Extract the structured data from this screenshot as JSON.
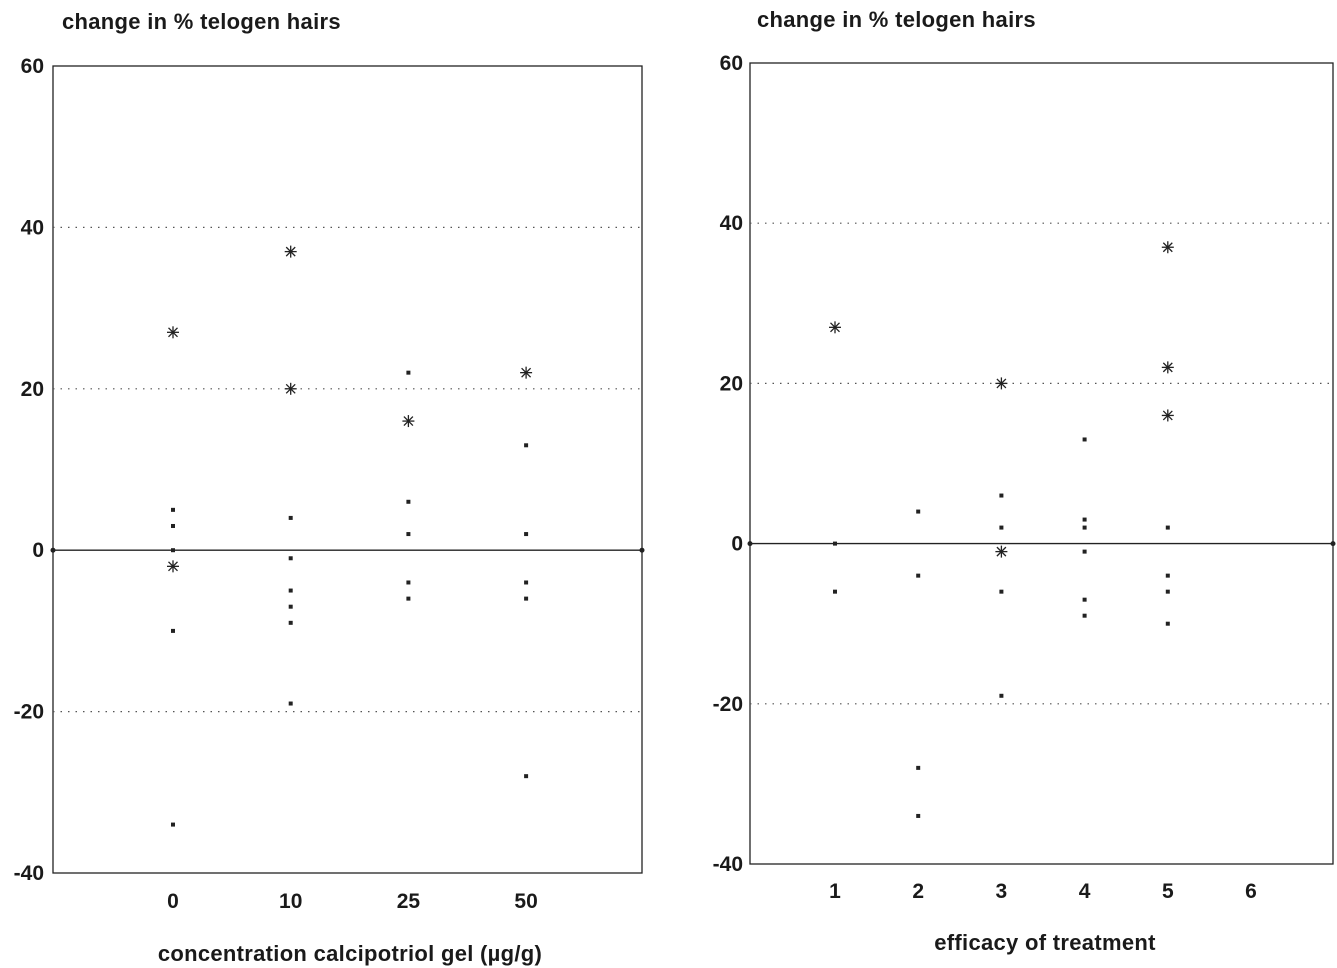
{
  "chart_data": [
    {
      "type": "scatter",
      "ylabel": "change in % telogen hairs",
      "xlabel": "concentration calcipotriol gel (µg/g)",
      "categories": [
        "0",
        "10",
        "25",
        "50"
      ],
      "ylim": [
        -40,
        60
      ],
      "yticks": [
        60,
        40,
        20,
        0,
        -20,
        -40
      ],
      "grid": "horizontal dotted at 40, 20, -20; solid line at 0",
      "legend": "none",
      "markers": [
        "dot",
        "asterisk"
      ],
      "series": [
        {
          "marker": "dot",
          "points": [
            {
              "x": "0",
              "y": 5
            },
            {
              "x": "0",
              "y": 3
            },
            {
              "x": "0",
              "y": 0
            },
            {
              "x": "0",
              "y": -10
            },
            {
              "x": "0",
              "y": -34
            },
            {
              "x": "10",
              "y": 4
            },
            {
              "x": "10",
              "y": -1
            },
            {
              "x": "10",
              "y": -5
            },
            {
              "x": "10",
              "y": -7
            },
            {
              "x": "10",
              "y": -9
            },
            {
              "x": "10",
              "y": -19
            },
            {
              "x": "25",
              "y": 22
            },
            {
              "x": "25",
              "y": 6
            },
            {
              "x": "25",
              "y": 2
            },
            {
              "x": "25",
              "y": -4
            },
            {
              "x": "25",
              "y": -6
            },
            {
              "x": "50",
              "y": 13
            },
            {
              "x": "50",
              "y": 2
            },
            {
              "x": "50",
              "y": -4
            },
            {
              "x": "50",
              "y": -6
            },
            {
              "x": "50",
              "y": -28
            }
          ]
        },
        {
          "marker": "asterisk",
          "points": [
            {
              "x": "0",
              "y": 27
            },
            {
              "x": "0",
              "y": -2
            },
            {
              "x": "10",
              "y": 37
            },
            {
              "x": "10",
              "y": 20
            },
            {
              "x": "25",
              "y": 16
            },
            {
              "x": "50",
              "y": 22
            }
          ]
        }
      ]
    },
    {
      "type": "scatter",
      "ylabel": "change in % telogen hairs",
      "xlabel": "efficacy of treatment",
      "categories": [
        "1",
        "2",
        "3",
        "4",
        "5",
        "6"
      ],
      "ylim": [
        -40,
        60
      ],
      "yticks": [
        60,
        40,
        20,
        0,
        -20,
        -40
      ],
      "grid": "horizontal dotted at 40, 20, -20; solid line at 0",
      "legend": "none",
      "markers": [
        "dot",
        "asterisk"
      ],
      "series": [
        {
          "marker": "dot",
          "points": [
            {
              "x": "1",
              "y": 0
            },
            {
              "x": "1",
              "y": -6
            },
            {
              "x": "2",
              "y": 4
            },
            {
              "x": "2",
              "y": -4
            },
            {
              "x": "2",
              "y": -28
            },
            {
              "x": "2",
              "y": -34
            },
            {
              "x": "3",
              "y": 6
            },
            {
              "x": "3",
              "y": 2
            },
            {
              "x": "3",
              "y": -6
            },
            {
              "x": "3",
              "y": -19
            },
            {
              "x": "4",
              "y": 13
            },
            {
              "x": "4",
              "y": 3
            },
            {
              "x": "4",
              "y": 2
            },
            {
              "x": "4",
              "y": -1
            },
            {
              "x": "4",
              "y": -7
            },
            {
              "x": "4",
              "y": -9
            },
            {
              "x": "5",
              "y": 2
            },
            {
              "x": "5",
              "y": -4
            },
            {
              "x": "5",
              "y": -6
            },
            {
              "x": "5",
              "y": -10
            }
          ]
        },
        {
          "marker": "asterisk",
          "points": [
            {
              "x": "1",
              "y": 27
            },
            {
              "x": "3",
              "y": 20
            },
            {
              "x": "3",
              "y": -1
            },
            {
              "x": "5",
              "y": 37
            },
            {
              "x": "5",
              "y": 22
            },
            {
              "x": "5",
              "y": 16
            }
          ]
        }
      ]
    }
  ]
}
